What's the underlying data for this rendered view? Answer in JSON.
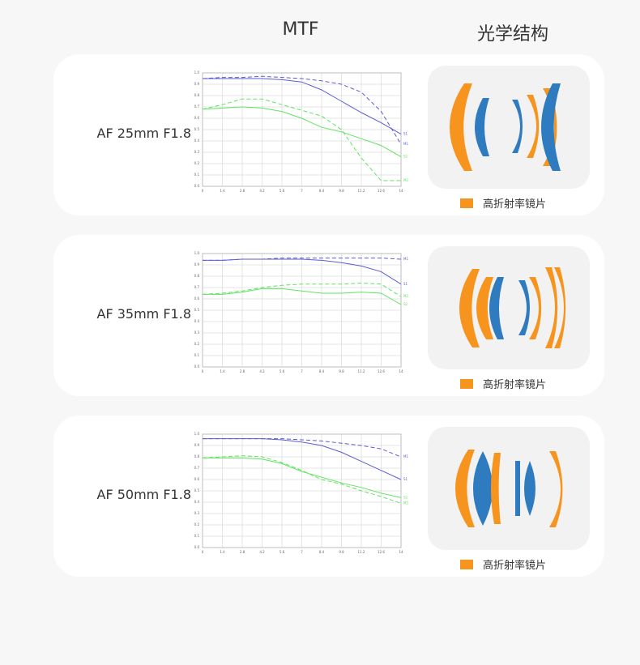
{
  "header": {
    "mtf": "MTF",
    "structure": "光学结构"
  },
  "rows": [
    {
      "label": "AF 25mm F1.8",
      "legend": "高折射率镜片"
    },
    {
      "label": "AF 35mm F1.8",
      "legend": "高折射率镜片"
    },
    {
      "label": "AF 50mm F1.8",
      "legend": "高折射率镜片"
    }
  ],
  "chart_data": [
    {
      "type": "line",
      "x": [
        0,
        1.4,
        2.8,
        4.2,
        5.6,
        7,
        8.4,
        9.8,
        11.2,
        12.6,
        14
      ],
      "xlim": [
        0,
        14
      ],
      "xticks": [
        0,
        1.4,
        2.8,
        4.2,
        5.6,
        7,
        8.4,
        9.8,
        11.2,
        12.6,
        14
      ],
      "ylim": [
        0,
        1
      ],
      "yticks": [
        {
          "value": 0,
          "label": "0.0"
        },
        0.1,
        0.2,
        0.3,
        0.4,
        0.5,
        0.6,
        0.7,
        0.8,
        0.9,
        {
          "value": 1,
          "label": "1.0"
        }
      ],
      "grid": true,
      "series": [
        {
          "name": "S1",
          "color": "#5b5bd6",
          "dashed": false,
          "values": [
            0.95,
            0.95,
            0.95,
            0.95,
            0.94,
            0.92,
            0.85,
            0.75,
            0.65,
            0.56,
            0.46
          ]
        },
        {
          "name": "M1",
          "color": "#5b5bd6",
          "dashed": true,
          "values": [
            0.95,
            0.96,
            0.96,
            0.97,
            0.96,
            0.95,
            0.93,
            0.9,
            0.83,
            0.66,
            0.37
          ]
        },
        {
          "name": "S2",
          "color": "#5fe35f",
          "dashed": false,
          "values": [
            0.68,
            0.69,
            0.7,
            0.69,
            0.66,
            0.6,
            0.52,
            0.48,
            0.42,
            0.36,
            0.26
          ]
        },
        {
          "name": "M2",
          "color": "#5fe35f",
          "dashed": true,
          "values": [
            0.68,
            0.72,
            0.77,
            0.77,
            0.72,
            0.67,
            0.62,
            0.5,
            0.25,
            0.05,
            0.05
          ]
        }
      ]
    },
    {
      "type": "line",
      "x": [
        0,
        1.4,
        2.8,
        4.2,
        5.6,
        7,
        8.4,
        9.8,
        11.2,
        12.6,
        14
      ],
      "xlim": [
        0,
        14
      ],
      "xticks": [
        0,
        1.4,
        2.8,
        4.2,
        5.6,
        7,
        8.4,
        9.8,
        11.2,
        12.6,
        14
      ],
      "ylim": [
        0,
        1
      ],
      "yticks": [
        {
          "value": 0,
          "label": "0.0"
        },
        0.1,
        0.2,
        0.3,
        0.4,
        0.5,
        0.6,
        0.7,
        0.8,
        0.9,
        {
          "value": 1,
          "label": "1.0"
        }
      ],
      "grid": true,
      "series": [
        {
          "name": "S1",
          "color": "#5b5bd6",
          "dashed": false,
          "values": [
            0.94,
            0.94,
            0.95,
            0.95,
            0.95,
            0.95,
            0.94,
            0.92,
            0.89,
            0.84,
            0.73
          ]
        },
        {
          "name": "M1",
          "color": "#5b5bd6",
          "dashed": true,
          "values": [
            0.94,
            0.94,
            0.95,
            0.95,
            0.96,
            0.96,
            0.96,
            0.96,
            0.96,
            0.96,
            0.95
          ]
        },
        {
          "name": "S2",
          "color": "#5fe35f",
          "dashed": false,
          "values": [
            0.64,
            0.64,
            0.66,
            0.69,
            0.69,
            0.67,
            0.65,
            0.65,
            0.66,
            0.65,
            0.55
          ]
        },
        {
          "name": "M2",
          "color": "#5fe35f",
          "dashed": true,
          "values": [
            0.64,
            0.65,
            0.67,
            0.7,
            0.72,
            0.73,
            0.73,
            0.73,
            0.74,
            0.73,
            0.62
          ]
        }
      ]
    },
    {
      "type": "line",
      "x": [
        0,
        1.4,
        2.8,
        4.2,
        5.6,
        7,
        8.4,
        9.8,
        11.2,
        12.6,
        14
      ],
      "xlim": [
        0,
        14
      ],
      "xticks": [
        0,
        1.4,
        2.8,
        4.2,
        5.6,
        7,
        8.4,
        9.8,
        11.2,
        12.6,
        14
      ],
      "ylim": [
        0,
        1
      ],
      "yticks": [
        {
          "value": 0,
          "label": "0.0"
        },
        0.1,
        0.2,
        0.3,
        0.4,
        0.5,
        0.6,
        0.7,
        0.8,
        0.9,
        {
          "value": 1,
          "label": "1.0"
        }
      ],
      "grid": true,
      "series": [
        {
          "name": "S1",
          "color": "#5b5bd6",
          "dashed": false,
          "values": [
            0.96,
            0.96,
            0.96,
            0.96,
            0.95,
            0.93,
            0.9,
            0.84,
            0.76,
            0.68,
            0.6
          ]
        },
        {
          "name": "M1",
          "color": "#5b5bd6",
          "dashed": true,
          "values": [
            0.96,
            0.96,
            0.96,
            0.96,
            0.96,
            0.95,
            0.94,
            0.92,
            0.9,
            0.87,
            0.8
          ]
        },
        {
          "name": "S2",
          "color": "#5fe35f",
          "dashed": false,
          "values": [
            0.79,
            0.79,
            0.79,
            0.78,
            0.74,
            0.67,
            0.62,
            0.57,
            0.53,
            0.48,
            0.44
          ]
        },
        {
          "name": "M2",
          "color": "#5fe35f",
          "dashed": true,
          "values": [
            0.79,
            0.8,
            0.81,
            0.8,
            0.75,
            0.68,
            0.6,
            0.56,
            0.5,
            0.45,
            0.39
          ]
        }
      ]
    }
  ]
}
